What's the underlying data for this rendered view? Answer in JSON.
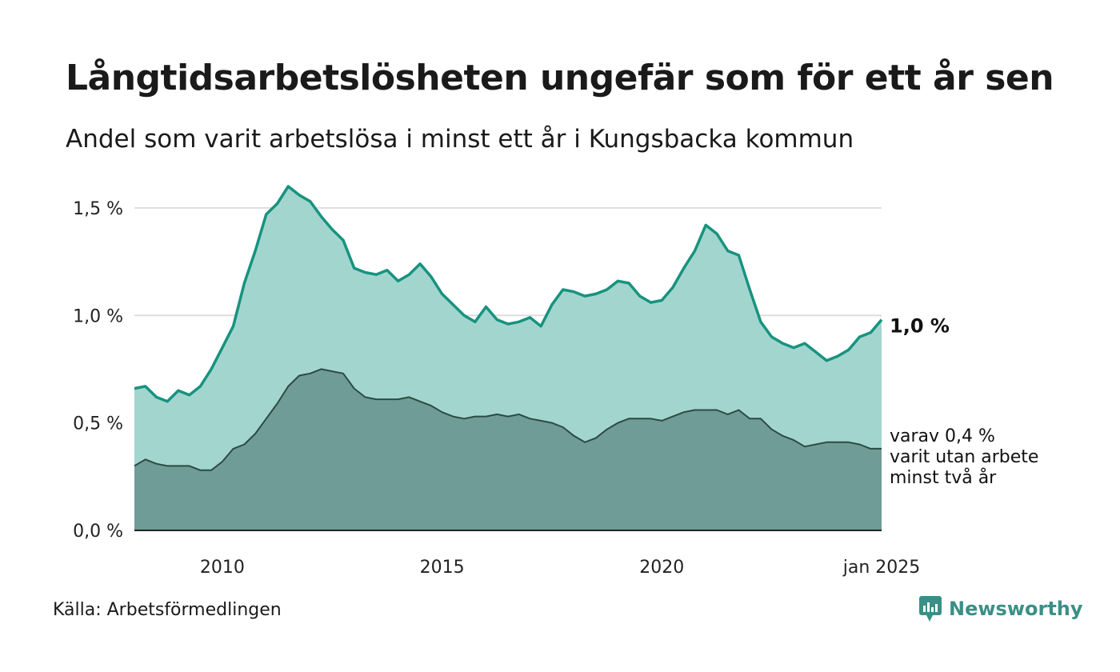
{
  "title": "Långtidsarbetslösheten ungefär som för ett år sen",
  "subtitle": "Andel som varit arbetslösa i minst ett år i Kungsbacka kommun",
  "source": "Källa: Arbetsförmedlingen",
  "brand": {
    "name": "Newsworthy",
    "icon": "newsworthy-logo-icon"
  },
  "colors": {
    "series1_line": "#17937f",
    "series1_fill": "#a3d5cf",
    "series2_line": "#2d4a45",
    "series2_fill": "#6f9c96",
    "grid": "#dddddd",
    "brand": "#3b8f86"
  },
  "chart_data": {
    "type": "area",
    "title": "Långtidsarbetslösheten ungefär som för ett år sen",
    "subtitle": "Andel som varit arbetslösa i minst ett år i Kungsbacka kommun",
    "xlabel": "",
    "ylabel": "",
    "xlim": [
      "2008-01",
      "2025-01"
    ],
    "ylim": [
      0,
      1.6
    ],
    "grid": true,
    "y_ticks": [
      {
        "value": 0,
        "label": "0,0 %"
      },
      {
        "value": 0.5,
        "label": "0,5 %"
      },
      {
        "value": 1.0,
        "label": "1,0 %"
      },
      {
        "value": 1.5,
        "label": "1,5 %"
      }
    ],
    "x_ticks": [
      {
        "value": "2010-01",
        "label": "2010"
      },
      {
        "value": "2015-01",
        "label": "2015"
      },
      {
        "value": "2020-01",
        "label": "2020"
      },
      {
        "value": "2025-01",
        "label": "jan 2025"
      }
    ],
    "annotations": {
      "end_value_label": "1,0 %",
      "series2_label": [
        "varav 0,4 %",
        "varit utan arbete",
        "minst två år"
      ]
    },
    "series": [
      {
        "key": "minst_ett_ar",
        "points": [
          [
            "2008-01",
            0.66
          ],
          [
            "2008-04",
            0.67
          ],
          [
            "2008-07",
            0.62
          ],
          [
            "2008-10",
            0.6
          ],
          [
            "2009-01",
            0.65
          ],
          [
            "2009-04",
            0.63
          ],
          [
            "2009-07",
            0.67
          ],
          [
            "2009-10",
            0.75
          ],
          [
            "2010-01",
            0.85
          ],
          [
            "2010-04",
            0.95
          ],
          [
            "2010-07",
            1.15
          ],
          [
            "2010-10",
            1.3
          ],
          [
            "2011-01",
            1.47
          ],
          [
            "2011-04",
            1.52
          ],
          [
            "2011-07",
            1.6
          ],
          [
            "2011-10",
            1.56
          ],
          [
            "2012-01",
            1.53
          ],
          [
            "2012-04",
            1.46
          ],
          [
            "2012-07",
            1.4
          ],
          [
            "2012-10",
            1.35
          ],
          [
            "2013-01",
            1.22
          ],
          [
            "2013-04",
            1.2
          ],
          [
            "2013-07",
            1.19
          ],
          [
            "2013-10",
            1.21
          ],
          [
            "2014-01",
            1.16
          ],
          [
            "2014-04",
            1.19
          ],
          [
            "2014-07",
            1.24
          ],
          [
            "2014-10",
            1.18
          ],
          [
            "2015-01",
            1.1
          ],
          [
            "2015-04",
            1.05
          ],
          [
            "2015-07",
            1.0
          ],
          [
            "2015-10",
            0.97
          ],
          [
            "2016-01",
            1.04
          ],
          [
            "2016-04",
            0.98
          ],
          [
            "2016-07",
            0.96
          ],
          [
            "2016-10",
            0.97
          ],
          [
            "2017-01",
            0.99
          ],
          [
            "2017-04",
            0.95
          ],
          [
            "2017-07",
            1.05
          ],
          [
            "2017-10",
            1.12
          ],
          [
            "2018-01",
            1.11
          ],
          [
            "2018-04",
            1.09
          ],
          [
            "2018-07",
            1.1
          ],
          [
            "2018-10",
            1.12
          ],
          [
            "2019-01",
            1.16
          ],
          [
            "2019-04",
            1.15
          ],
          [
            "2019-07",
            1.09
          ],
          [
            "2019-10",
            1.06
          ],
          [
            "2020-01",
            1.07
          ],
          [
            "2020-04",
            1.13
          ],
          [
            "2020-07",
            1.22
          ],
          [
            "2020-10",
            1.3
          ],
          [
            "2021-01",
            1.42
          ],
          [
            "2021-04",
            1.38
          ],
          [
            "2021-07",
            1.3
          ],
          [
            "2021-10",
            1.28
          ],
          [
            "2022-01",
            1.12
          ],
          [
            "2022-04",
            0.97
          ],
          [
            "2022-07",
            0.9
          ],
          [
            "2022-10",
            0.87
          ],
          [
            "2023-01",
            0.85
          ],
          [
            "2023-04",
            0.87
          ],
          [
            "2023-07",
            0.83
          ],
          [
            "2023-10",
            0.79
          ],
          [
            "2024-01",
            0.81
          ],
          [
            "2024-04",
            0.84
          ],
          [
            "2024-07",
            0.9
          ],
          [
            "2024-10",
            0.92
          ],
          [
            "2025-01",
            0.98
          ]
        ]
      },
      {
        "key": "minst_tva_ar",
        "points": [
          [
            "2008-01",
            0.3
          ],
          [
            "2008-04",
            0.33
          ],
          [
            "2008-07",
            0.31
          ],
          [
            "2008-10",
            0.3
          ],
          [
            "2009-01",
            0.3
          ],
          [
            "2009-04",
            0.3
          ],
          [
            "2009-07",
            0.28
          ],
          [
            "2009-10",
            0.28
          ],
          [
            "2010-01",
            0.32
          ],
          [
            "2010-04",
            0.38
          ],
          [
            "2010-07",
            0.4
          ],
          [
            "2010-10",
            0.45
          ],
          [
            "2011-01",
            0.52
          ],
          [
            "2011-04",
            0.59
          ],
          [
            "2011-07",
            0.67
          ],
          [
            "2011-10",
            0.72
          ],
          [
            "2012-01",
            0.73
          ],
          [
            "2012-04",
            0.75
          ],
          [
            "2012-07",
            0.74
          ],
          [
            "2012-10",
            0.73
          ],
          [
            "2013-01",
            0.66
          ],
          [
            "2013-04",
            0.62
          ],
          [
            "2013-07",
            0.61
          ],
          [
            "2013-10",
            0.61
          ],
          [
            "2014-01",
            0.61
          ],
          [
            "2014-04",
            0.62
          ],
          [
            "2014-07",
            0.6
          ],
          [
            "2014-10",
            0.58
          ],
          [
            "2015-01",
            0.55
          ],
          [
            "2015-04",
            0.53
          ],
          [
            "2015-07",
            0.52
          ],
          [
            "2015-10",
            0.53
          ],
          [
            "2016-01",
            0.53
          ],
          [
            "2016-04",
            0.54
          ],
          [
            "2016-07",
            0.53
          ],
          [
            "2016-10",
            0.54
          ],
          [
            "2017-01",
            0.52
          ],
          [
            "2017-04",
            0.51
          ],
          [
            "2017-07",
            0.5
          ],
          [
            "2017-10",
            0.48
          ],
          [
            "2018-01",
            0.44
          ],
          [
            "2018-04",
            0.41
          ],
          [
            "2018-07",
            0.43
          ],
          [
            "2018-10",
            0.47
          ],
          [
            "2019-01",
            0.5
          ],
          [
            "2019-04",
            0.52
          ],
          [
            "2019-07",
            0.52
          ],
          [
            "2019-10",
            0.52
          ],
          [
            "2020-01",
            0.51
          ],
          [
            "2020-04",
            0.53
          ],
          [
            "2020-07",
            0.55
          ],
          [
            "2020-10",
            0.56
          ],
          [
            "2021-01",
            0.56
          ],
          [
            "2021-04",
            0.56
          ],
          [
            "2021-07",
            0.54
          ],
          [
            "2021-10",
            0.56
          ],
          [
            "2022-01",
            0.52
          ],
          [
            "2022-04",
            0.52
          ],
          [
            "2022-07",
            0.47
          ],
          [
            "2022-10",
            0.44
          ],
          [
            "2023-01",
            0.42
          ],
          [
            "2023-04",
            0.39
          ],
          [
            "2023-07",
            0.4
          ],
          [
            "2023-10",
            0.41
          ],
          [
            "2024-01",
            0.41
          ],
          [
            "2024-04",
            0.41
          ],
          [
            "2024-07",
            0.4
          ],
          [
            "2024-10",
            0.38
          ],
          [
            "2025-01",
            0.38
          ]
        ]
      }
    ]
  }
}
